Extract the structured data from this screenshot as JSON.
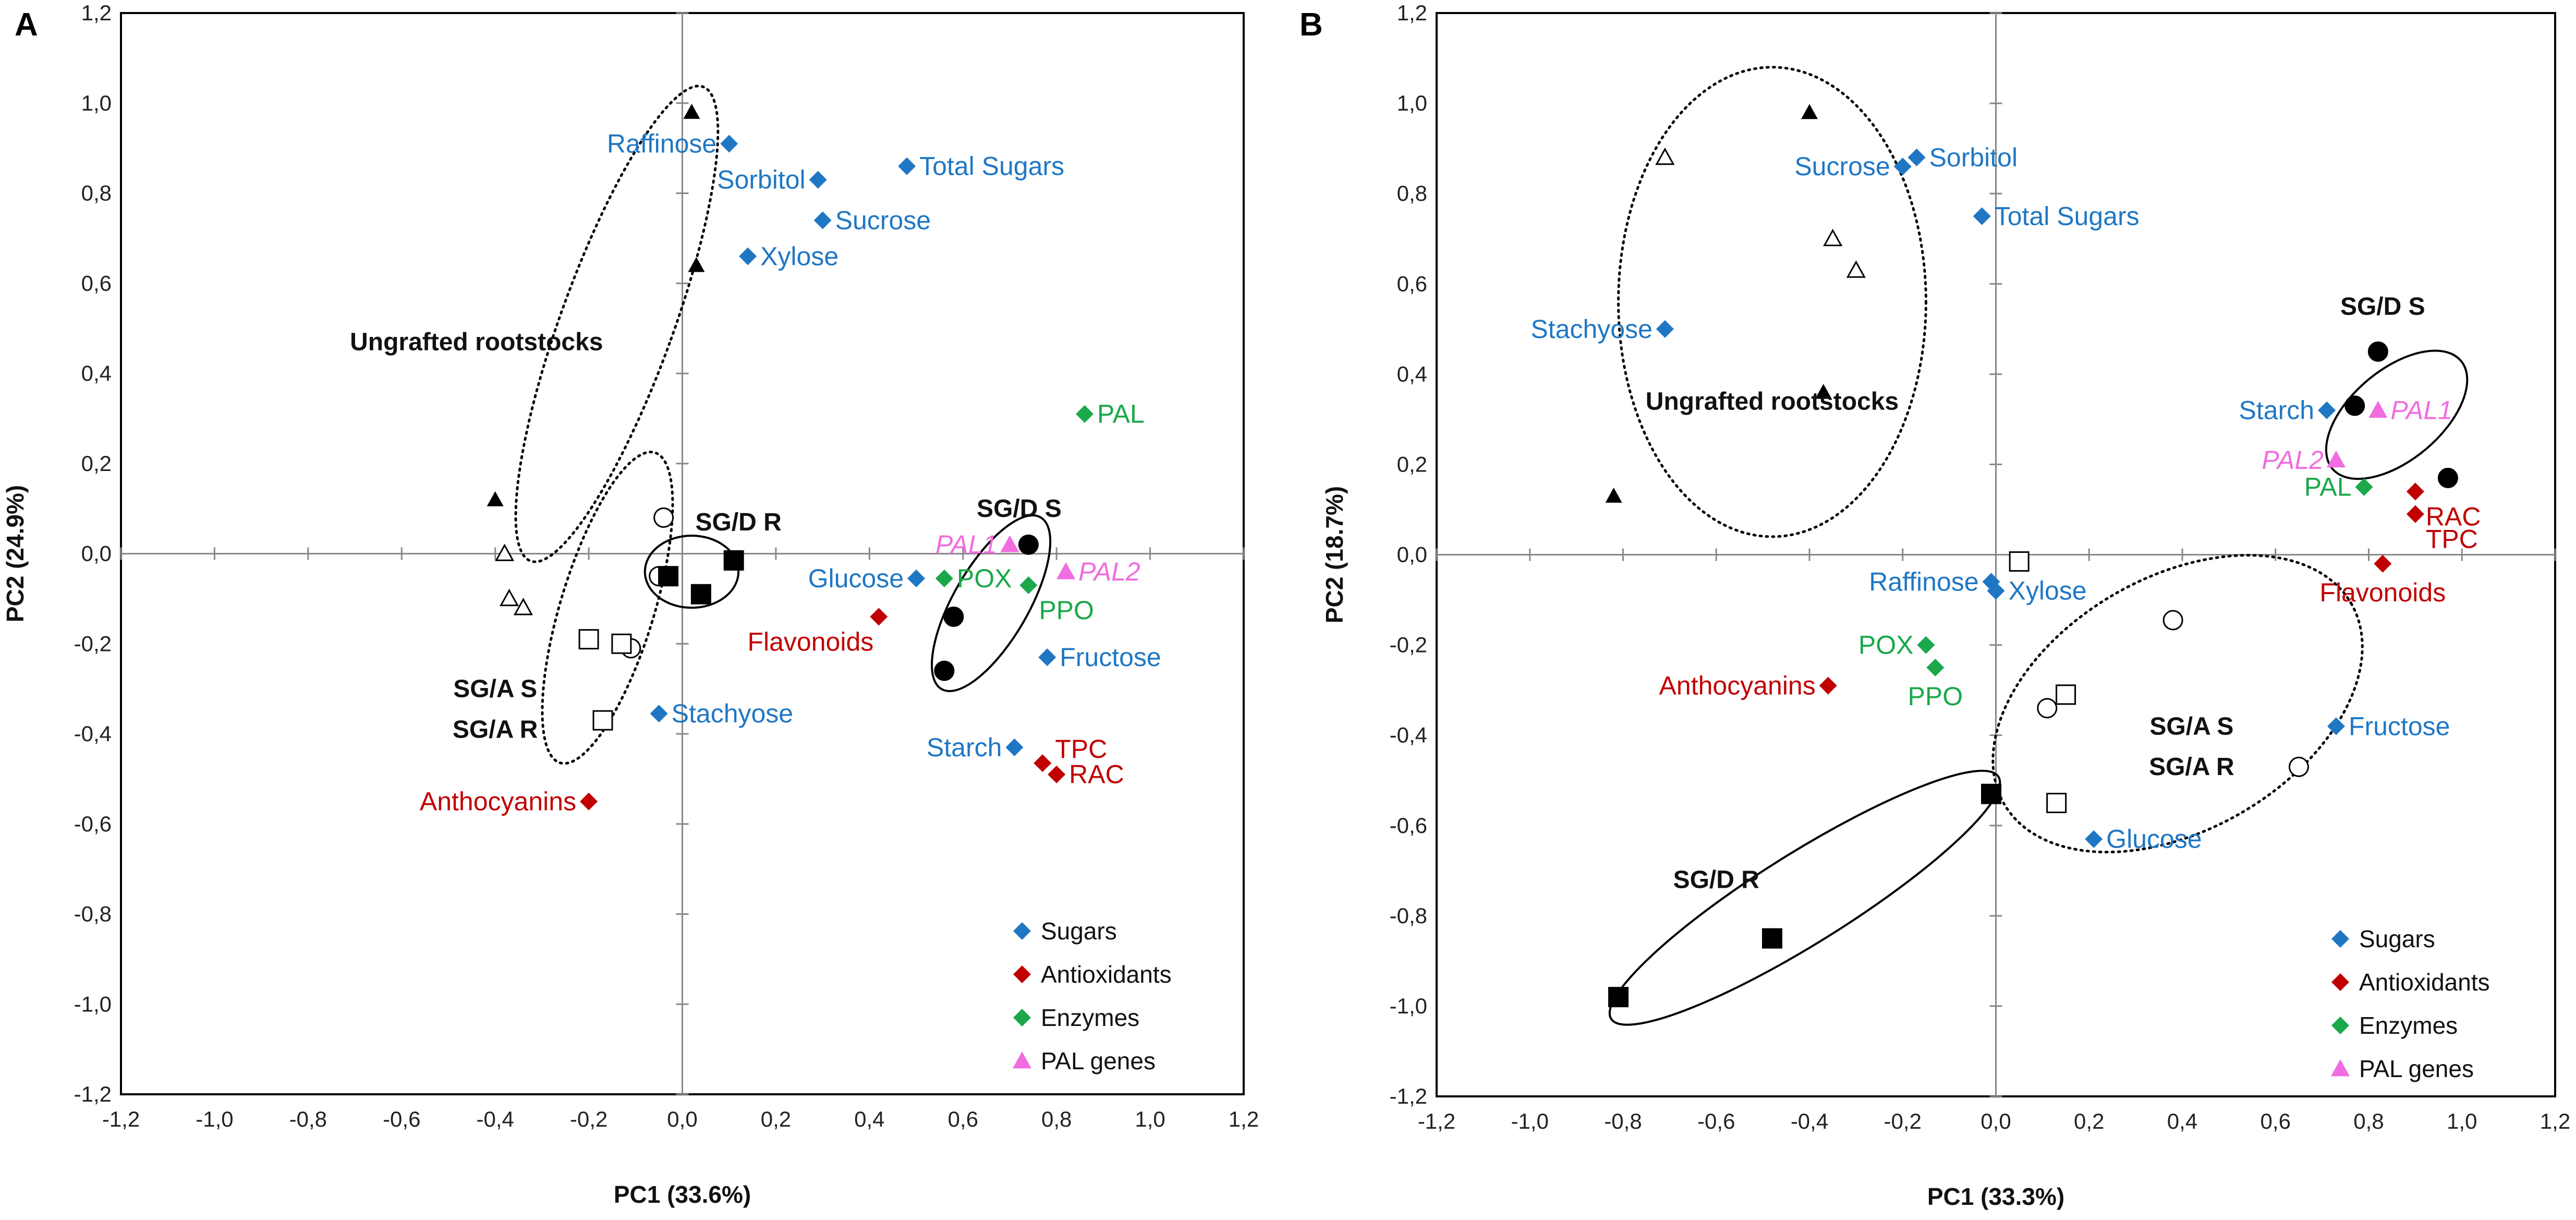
{
  "colors": {
    "sugars": "#1f77c4",
    "antioxidants": "#c00000",
    "enzymes": "#1aa84a",
    "pal": "#f06ce0"
  },
  "chart_data": [
    {
      "type": "scatter",
      "panel": "A",
      "xlabel": "PC1 (33.6%)",
      "ylabel": "PC2 (24.9%)",
      "xlim": [
        -1.2,
        1.2
      ],
      "ylim": [
        -1.2,
        1.2
      ],
      "xticks": [
        "-1,2",
        "-1,0",
        "-0,8",
        "-0,6",
        "-0,4",
        "-0,2",
        "0,0",
        "0,2",
        "0,4",
        "0,6",
        "0,8",
        "1,0",
        "1,2"
      ],
      "yticks": [
        "1,2",
        "1,0",
        "0,8",
        "0,6",
        "0,4",
        "0,2",
        "0,0",
        "-0,2",
        "-0,4",
        "-0,6",
        "-0,8",
        "-1,0",
        "-1,2"
      ],
      "legend": [
        "Sugars",
        "Antioxidants",
        "Enzymes",
        "PAL genes"
      ],
      "variables": [
        {
          "label": "Raffinose",
          "x": 0.1,
          "y": 0.91,
          "cat": "sugars",
          "pos": "left"
        },
        {
          "label": "Sorbitol",
          "x": 0.29,
          "y": 0.83,
          "cat": "sugars",
          "pos": "left"
        },
        {
          "label": "Total Sugars",
          "x": 0.48,
          "y": 0.86,
          "cat": "sugars",
          "pos": "right"
        },
        {
          "label": "Sucrose",
          "x": 0.3,
          "y": 0.74,
          "cat": "sugars",
          "pos": "right"
        },
        {
          "label": "Xylose",
          "x": 0.14,
          "y": 0.66,
          "cat": "sugars",
          "pos": "right"
        },
        {
          "label": "Glucose",
          "x": 0.5,
          "y": -0.055,
          "cat": "sugars",
          "pos": "left"
        },
        {
          "label": "Fructose",
          "x": 0.78,
          "y": -0.23,
          "cat": "sugars",
          "pos": "right"
        },
        {
          "label": "Stachyose",
          "x": -0.05,
          "y": -0.355,
          "cat": "sugars",
          "pos": "right"
        },
        {
          "label": "Starch",
          "x": 0.71,
          "y": -0.43,
          "cat": "sugars",
          "pos": "left"
        },
        {
          "label": "Flavonoids",
          "x": 0.42,
          "y": -0.14,
          "cat": "antioxidants",
          "pos": "left-below"
        },
        {
          "label": "TPC",
          "x": 0.77,
          "y": -0.465,
          "cat": "antioxidants",
          "pos": "right-above"
        },
        {
          "label": "RAC",
          "x": 0.8,
          "y": -0.49,
          "cat": "antioxidants",
          "pos": "right"
        },
        {
          "label": "Anthocyanins",
          "x": -0.2,
          "y": -0.55,
          "cat": "antioxidants",
          "pos": "left"
        },
        {
          "label": "PAL",
          "x": 0.86,
          "y": 0.31,
          "cat": "enzymes",
          "pos": "right"
        },
        {
          "label": "POX",
          "x": 0.56,
          "y": -0.055,
          "cat": "enzymes",
          "pos": "right"
        },
        {
          "label": "PPO",
          "x": 0.74,
          "y": -0.07,
          "cat": "enzymes",
          "pos": "right-below"
        },
        {
          "label": "PAL1",
          "x": 0.7,
          "y": 0.02,
          "cat": "pal",
          "pos": "left"
        },
        {
          "label": "PAL2",
          "x": 0.82,
          "y": -0.04,
          "cat": "pal",
          "pos": "right"
        }
      ],
      "samples": [
        {
          "shape": "triangle-filled",
          "x": 0.02,
          "y": 0.98
        },
        {
          "shape": "triangle-filled",
          "x": 0.03,
          "y": 0.64
        },
        {
          "shape": "triangle-filled",
          "x": -0.4,
          "y": 0.12
        },
        {
          "shape": "triangle-open",
          "x": -0.38,
          "y": 0.0
        },
        {
          "shape": "triangle-open",
          "x": -0.37,
          "y": -0.1
        },
        {
          "shape": "triangle-open",
          "x": -0.34,
          "y": -0.12
        },
        {
          "shape": "circle-open",
          "x": -0.04,
          "y": 0.08
        },
        {
          "shape": "circle-open",
          "x": -0.05,
          "y": -0.05
        },
        {
          "shape": "circle-open",
          "x": -0.11,
          "y": -0.21
        },
        {
          "shape": "square-open",
          "x": -0.2,
          "y": -0.19
        },
        {
          "shape": "square-open",
          "x": -0.13,
          "y": -0.2
        },
        {
          "shape": "square-open",
          "x": -0.17,
          "y": -0.37
        },
        {
          "shape": "square-filled",
          "x": -0.03,
          "y": -0.05
        },
        {
          "shape": "square-filled",
          "x": 0.04,
          "y": -0.09
        },
        {
          "shape": "square-filled",
          "x": 0.11,
          "y": -0.015
        },
        {
          "shape": "circle-filled",
          "x": 0.74,
          "y": 0.02
        },
        {
          "shape": "circle-filled",
          "x": 0.58,
          "y": -0.14
        },
        {
          "shape": "circle-filled",
          "x": 0.56,
          "y": -0.26
        }
      ],
      "groups": [
        {
          "label": "Ungrafted rootstocks",
          "x": -0.44,
          "y": 0.47
        },
        {
          "label": "SG/D R",
          "x": 0.12,
          "y": 0.07
        },
        {
          "label": "SG/D S",
          "x": 0.72,
          "y": 0.1
        },
        {
          "label": "SG/A S",
          "x": -0.4,
          "y": -0.3
        },
        {
          "label": "SG/A R",
          "x": -0.4,
          "y": -0.39
        }
      ],
      "ellipses": [
        {
          "cx": -0.14,
          "cy": 0.51,
          "rx": 0.12,
          "ry": 0.56,
          "rot": 20,
          "style": "dotted"
        },
        {
          "cx": -0.16,
          "cy": -0.12,
          "rx": 0.1,
          "ry": 0.36,
          "rot": 17,
          "style": "dotted"
        },
        {
          "cx": 0.02,
          "cy": -0.04,
          "rx": 0.1,
          "ry": 0.08,
          "rot": 0,
          "style": "solid"
        },
        {
          "cx": 0.66,
          "cy": -0.11,
          "rx": 0.08,
          "ry": 0.22,
          "rot": 30,
          "style": "solid"
        }
      ]
    },
    {
      "type": "scatter",
      "panel": "B",
      "xlabel": "PC1 (33.3%)",
      "ylabel": "PC2 (18.7%)",
      "xlim": [
        -1.2,
        1.2
      ],
      "ylim": [
        -1.2,
        1.2
      ],
      "xticks": [
        "-1,2",
        "-1,0",
        "-0,8",
        "-0,6",
        "-0,4",
        "-0,2",
        "0,0",
        "0,2",
        "0,4",
        "0,6",
        "0,8",
        "1,0",
        "1,2"
      ],
      "yticks": [
        "1,2",
        "1,0",
        "0,8",
        "0,6",
        "0,4",
        "0,2",
        "0,0",
        "-0,2",
        "-0,4",
        "-0,6",
        "-0,8",
        "-1,0",
        "-1,2"
      ],
      "legend": [
        "Sugars",
        "Antioxidants",
        "Enzymes",
        "PAL genes"
      ],
      "variables": [
        {
          "label": "Sorbitol",
          "x": -0.17,
          "y": 0.88,
          "cat": "sugars",
          "pos": "right"
        },
        {
          "label": "Sucrose",
          "x": -0.2,
          "y": 0.86,
          "cat": "sugars",
          "pos": "left"
        },
        {
          "label": "Total Sugars",
          "x": -0.03,
          "y": 0.75,
          "cat": "sugars",
          "pos": "right"
        },
        {
          "label": "Stachyose",
          "x": -0.71,
          "y": 0.5,
          "cat": "sugars",
          "pos": "left"
        },
        {
          "label": "Starch",
          "x": 0.71,
          "y": 0.32,
          "cat": "sugars",
          "pos": "left"
        },
        {
          "label": "Raffinose",
          "x": -0.01,
          "y": -0.06,
          "cat": "sugars",
          "pos": "left"
        },
        {
          "label": "Xylose",
          "x": 0.0,
          "y": -0.08,
          "cat": "sugars",
          "pos": "right"
        },
        {
          "label": "Fructose",
          "x": 0.73,
          "y": -0.38,
          "cat": "sugars",
          "pos": "right"
        },
        {
          "label": "Glucose",
          "x": 0.21,
          "y": -0.63,
          "cat": "sugars",
          "pos": "right"
        },
        {
          "label": "RAC",
          "x": 0.9,
          "y": 0.14,
          "cat": "antioxidants",
          "pos": "right-below"
        },
        {
          "label": "TPC",
          "x": 0.9,
          "y": 0.09,
          "cat": "antioxidants",
          "pos": "right-below"
        },
        {
          "label": "Flavonoids",
          "x": 0.83,
          "y": -0.02,
          "cat": "antioxidants",
          "pos": "below"
        },
        {
          "label": "Anthocyanins",
          "x": -0.36,
          "y": -0.29,
          "cat": "antioxidants",
          "pos": "left"
        },
        {
          "label": "PAL",
          "x": 0.79,
          "y": 0.15,
          "cat": "enzymes",
          "pos": "left"
        },
        {
          "label": "POX",
          "x": -0.15,
          "y": -0.2,
          "cat": "enzymes",
          "pos": "left"
        },
        {
          "label": "PPO",
          "x": -0.13,
          "y": -0.25,
          "cat": "enzymes",
          "pos": "below"
        },
        {
          "label": "PAL1",
          "x": 0.82,
          "y": 0.32,
          "cat": "pal",
          "pos": "right"
        },
        {
          "label": "PAL2",
          "x": 0.73,
          "y": 0.21,
          "cat": "pal",
          "pos": "left"
        }
      ],
      "samples": [
        {
          "shape": "triangle-filled",
          "x": -0.4,
          "y": 0.98
        },
        {
          "shape": "triangle-open",
          "x": -0.71,
          "y": 0.88
        },
        {
          "shape": "triangle-open",
          "x": -0.35,
          "y": 0.7
        },
        {
          "shape": "triangle-open",
          "x": -0.3,
          "y": 0.63
        },
        {
          "shape": "triangle-filled",
          "x": -0.37,
          "y": 0.36
        },
        {
          "shape": "triangle-filled",
          "x": -0.82,
          "y": 0.13
        },
        {
          "shape": "circle-filled",
          "x": 0.82,
          "y": 0.45
        },
        {
          "shape": "circle-filled",
          "x": 0.77,
          "y": 0.33
        },
        {
          "shape": "circle-filled",
          "x": 0.97,
          "y": 0.17
        },
        {
          "shape": "square-open",
          "x": 0.05,
          "y": -0.015
        },
        {
          "shape": "circle-open",
          "x": 0.38,
          "y": -0.145
        },
        {
          "shape": "square-open",
          "x": 0.15,
          "y": -0.31
        },
        {
          "shape": "circle-open",
          "x": 0.11,
          "y": -0.34
        },
        {
          "shape": "circle-open",
          "x": 0.65,
          "y": -0.47
        },
        {
          "shape": "square-open",
          "x": 0.13,
          "y": -0.55
        },
        {
          "shape": "square-filled",
          "x": -0.01,
          "y": -0.53
        },
        {
          "shape": "square-filled",
          "x": -0.48,
          "y": -0.85
        },
        {
          "shape": "square-filled",
          "x": -0.81,
          "y": -0.98
        }
      ],
      "groups": [
        {
          "label": "Ungrafted rootstocks",
          "x": -0.48,
          "y": 0.34
        },
        {
          "label": "SG/D S",
          "x": 0.83,
          "y": 0.55
        },
        {
          "label": "SG/A S",
          "x": 0.42,
          "y": -0.38
        },
        {
          "label": "SG/A R",
          "x": 0.42,
          "y": -0.47
        },
        {
          "label": "SG/D R",
          "x": -0.6,
          "y": -0.72
        }
      ],
      "ellipses": [
        {
          "cx": -0.48,
          "cy": 0.56,
          "rx": 0.33,
          "ry": 0.52,
          "rot": 0,
          "style": "dotted"
        },
        {
          "cx": 0.39,
          "cy": -0.33,
          "rx": 0.43,
          "ry": 0.28,
          "rot": -30,
          "style": "dotted"
        },
        {
          "cx": 0.86,
          "cy": 0.31,
          "rx": 0.18,
          "ry": 0.1,
          "rot": -40,
          "style": "solid"
        },
        {
          "cx": -0.41,
          "cy": -0.76,
          "rx": 0.49,
          "ry": 0.1,
          "rot": -32,
          "style": "solid"
        }
      ]
    }
  ]
}
